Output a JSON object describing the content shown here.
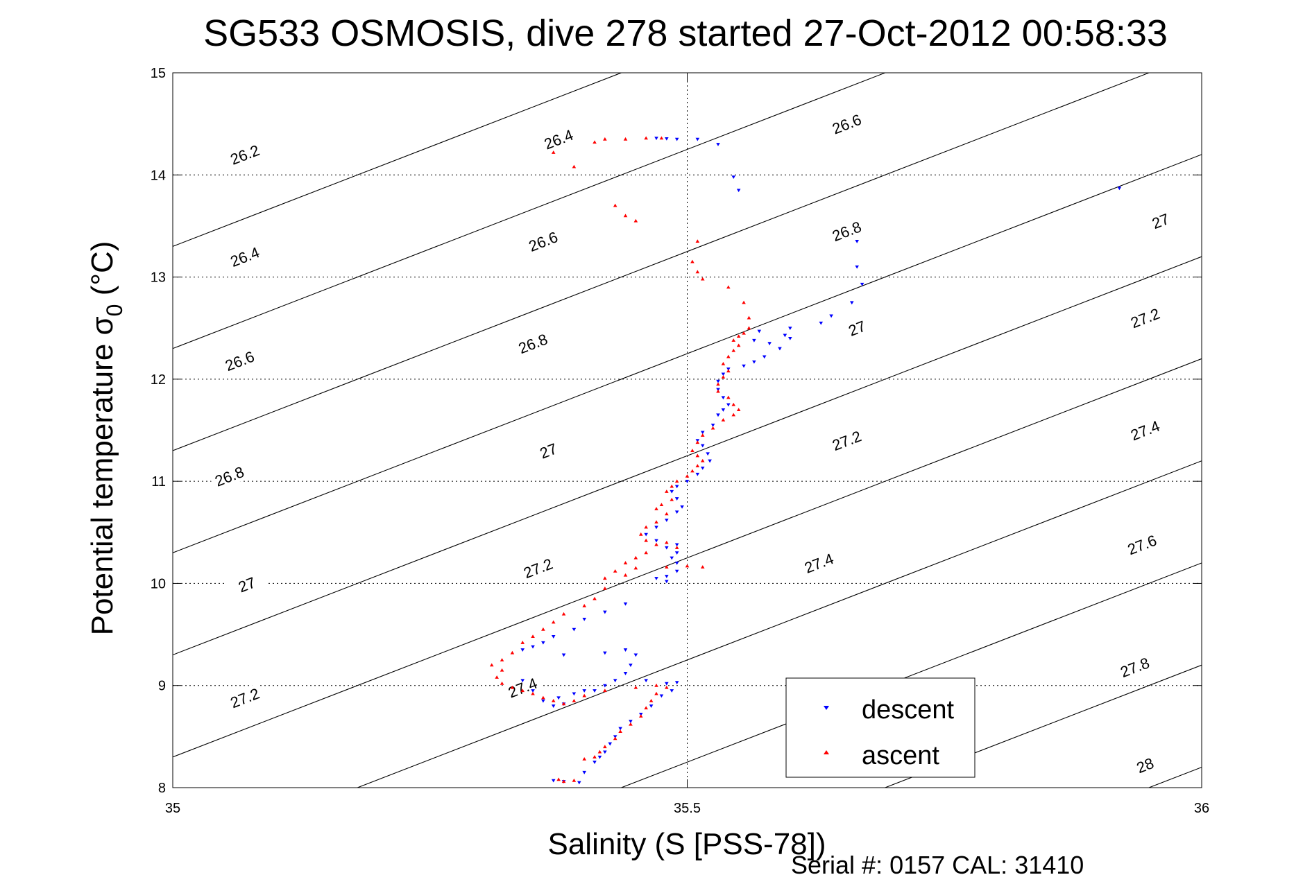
{
  "chart_data": {
    "type": "scatter",
    "title": "SG533 OSMOSIS, dive 278 started 27-Oct-2012 00:58:33",
    "xlabel": "Salinity (S [PSS-78])",
    "ylabel": "Potential temperature σ",
    "ylabel_sub": "0",
    "ylabel_unit": " (°C)",
    "xlim": [
      35,
      36
    ],
    "ylim": [
      8,
      15
    ],
    "xticks": [
      35,
      35.5,
      36
    ],
    "xtick_labels": [
      "35",
      "35.5",
      "36"
    ],
    "yticks": [
      8,
      9,
      10,
      11,
      12,
      13,
      14,
      15
    ],
    "ytick_labels": [
      "8",
      "9",
      "10",
      "11",
      "12",
      "13",
      "14",
      "15"
    ],
    "grid": true,
    "legend_position": "bottom-right",
    "contours": {
      "levels": [
        26.2,
        26.4,
        26.6,
        26.8,
        27,
        27.2,
        27.4,
        27.6,
        27.8,
        28
      ],
      "labels": [
        {
          "text": "26.2",
          "s": 35.07,
          "t": 14.2
        },
        {
          "text": "26.4",
          "s": 35.375,
          "t": 14.35
        },
        {
          "text": "26.4",
          "s": 35.07,
          "t": 13.2
        },
        {
          "text": "26.6",
          "s": 35.36,
          "t": 13.35
        },
        {
          "text": "26.6",
          "s": 35.655,
          "t": 14.5
        },
        {
          "text": "26.6",
          "s": 35.065,
          "t": 12.18
        },
        {
          "text": "26.8",
          "s": 35.35,
          "t": 12.35
        },
        {
          "text": "26.8",
          "s": 35.655,
          "t": 13.45
        },
        {
          "text": "27",
          "s": 35.96,
          "t": 13.55
        },
        {
          "text": "26.8",
          "s": 35.055,
          "t": 11.05
        },
        {
          "text": "27",
          "s": 35.365,
          "t": 11.3
        },
        {
          "text": "27",
          "s": 35.665,
          "t": 12.5
        },
        {
          "text": "27.2",
          "s": 35.945,
          "t": 12.6
        },
        {
          "text": "27",
          "s": 35.072,
          "t": 9.99
        },
        {
          "text": "27.2",
          "s": 35.355,
          "t": 10.15
        },
        {
          "text": "27.2",
          "s": 35.655,
          "t": 11.4
        },
        {
          "text": "27.4",
          "s": 35.945,
          "t": 11.5
        },
        {
          "text": "27.2",
          "s": 35.07,
          "t": 8.88
        },
        {
          "text": "27.4",
          "s": 35.34,
          "t": 8.98
        },
        {
          "text": "27.4",
          "s": 35.628,
          "t": 10.2
        },
        {
          "text": "27.6",
          "s": 35.942,
          "t": 10.38
        },
        {
          "text": "27.8",
          "s": 35.935,
          "t": 9.18
        },
        {
          "text": "28",
          "s": 35.945,
          "t": 8.22
        }
      ]
    },
    "series": [
      {
        "name": "descent",
        "color": "#0000ff",
        "marker": "triangle-down",
        "points": [
          [
            35.47,
            14.36
          ],
          [
            35.48,
            14.355
          ],
          [
            35.49,
            14.35
          ],
          [
            35.51,
            14.35
          ],
          [
            35.53,
            14.3
          ],
          [
            35.545,
            13.98
          ],
          [
            35.55,
            13.85
          ],
          [
            35.92,
            13.87
          ],
          [
            35.665,
            13.35
          ],
          [
            35.665,
            13.1
          ],
          [
            35.67,
            12.93
          ],
          [
            35.66,
            12.75
          ],
          [
            35.64,
            12.62
          ],
          [
            35.63,
            12.55
          ],
          [
            35.6,
            12.5
          ],
          [
            35.57,
            12.47
          ],
          [
            35.595,
            12.43
          ],
          [
            35.6,
            12.4
          ],
          [
            35.58,
            12.35
          ],
          [
            35.565,
            12.38
          ],
          [
            35.59,
            12.3
          ],
          [
            35.575,
            12.22
          ],
          [
            35.565,
            12.17
          ],
          [
            35.555,
            12.13
          ],
          [
            35.54,
            12.1
          ],
          [
            35.535,
            12.05
          ],
          [
            35.53,
            11.98
          ],
          [
            35.53,
            11.9
          ],
          [
            35.535,
            11.82
          ],
          [
            35.54,
            11.75
          ],
          [
            35.535,
            11.7
          ],
          [
            35.53,
            11.65
          ],
          [
            35.525,
            11.55
          ],
          [
            35.515,
            11.48
          ],
          [
            35.51,
            11.4
          ],
          [
            35.515,
            11.35
          ],
          [
            35.52,
            11.27
          ],
          [
            35.522,
            11.2
          ],
          [
            35.515,
            11.13
          ],
          [
            35.51,
            11.07
          ],
          [
            35.5,
            11.0
          ],
          [
            35.49,
            10.95
          ],
          [
            35.485,
            10.9
          ],
          [
            35.49,
            10.83
          ],
          [
            35.495,
            10.75
          ],
          [
            35.49,
            10.7
          ],
          [
            35.48,
            10.62
          ],
          [
            35.47,
            10.55
          ],
          [
            35.46,
            10.48
          ],
          [
            35.47,
            10.42
          ],
          [
            35.48,
            10.35
          ],
          [
            35.49,
            10.38
          ],
          [
            35.49,
            10.3
          ],
          [
            35.485,
            10.25
          ],
          [
            35.49,
            10.2
          ],
          [
            35.49,
            10.12
          ],
          [
            35.48,
            10.07
          ],
          [
            35.48,
            10.02
          ],
          [
            35.47,
            10.05
          ],
          [
            35.44,
            9.8
          ],
          [
            35.42,
            9.72
          ],
          [
            35.4,
            9.65
          ],
          [
            35.39,
            9.55
          ],
          [
            35.37,
            9.48
          ],
          [
            35.36,
            9.42
          ],
          [
            35.35,
            9.38
          ],
          [
            35.34,
            9.35
          ],
          [
            35.38,
            9.3
          ],
          [
            35.42,
            9.32
          ],
          [
            35.44,
            9.35
          ],
          [
            35.45,
            9.3
          ],
          [
            35.445,
            9.2
          ],
          [
            35.44,
            9.12
          ],
          [
            35.43,
            9.05
          ],
          [
            35.46,
            9.05
          ],
          [
            35.48,
            9.02
          ],
          [
            35.49,
            9.03
          ],
          [
            35.485,
            8.95
          ],
          [
            35.475,
            8.9
          ],
          [
            35.465,
            8.8
          ],
          [
            35.455,
            8.72
          ],
          [
            35.445,
            8.65
          ],
          [
            35.435,
            8.58
          ],
          [
            35.43,
            8.5
          ],
          [
            35.425,
            8.43
          ],
          [
            35.42,
            8.35
          ],
          [
            35.415,
            8.3
          ],
          [
            35.41,
            8.25
          ],
          [
            35.4,
            8.15
          ],
          [
            35.395,
            8.05
          ],
          [
            35.38,
            8.06
          ],
          [
            35.37,
            8.07
          ],
          [
            35.42,
            9.0
          ],
          [
            35.41,
            8.95
          ],
          [
            35.4,
            8.95
          ],
          [
            35.39,
            8.92
          ],
          [
            35.375,
            8.88
          ],
          [
            35.37,
            8.8
          ],
          [
            35.38,
            8.82
          ],
          [
            35.36,
            8.85
          ],
          [
            35.35,
            8.95
          ],
          [
            35.34,
            9.05
          ]
        ]
      },
      {
        "name": "ascent",
        "color": "#ff0000",
        "marker": "triangle-up",
        "points": [
          [
            35.37,
            14.22
          ],
          [
            35.39,
            14.08
          ],
          [
            35.41,
            14.32
          ],
          [
            35.42,
            14.35
          ],
          [
            35.44,
            14.35
          ],
          [
            35.46,
            14.36
          ],
          [
            35.475,
            14.36
          ],
          [
            35.43,
            13.7
          ],
          [
            35.44,
            13.6
          ],
          [
            35.45,
            13.55
          ],
          [
            35.51,
            13.35
          ],
          [
            35.505,
            13.15
          ],
          [
            35.51,
            13.05
          ],
          [
            35.515,
            12.98
          ],
          [
            35.54,
            12.9
          ],
          [
            35.555,
            12.75
          ],
          [
            35.56,
            12.6
          ],
          [
            35.56,
            12.5
          ],
          [
            35.555,
            12.45
          ],
          [
            35.55,
            12.42
          ],
          [
            35.545,
            12.38
          ],
          [
            35.55,
            12.33
          ],
          [
            35.545,
            12.28
          ],
          [
            35.54,
            12.22
          ],
          [
            35.535,
            12.15
          ],
          [
            35.54,
            12.08
          ],
          [
            35.535,
            12.02
          ],
          [
            35.53,
            11.95
          ],
          [
            35.53,
            11.88
          ],
          [
            35.54,
            11.82
          ],
          [
            35.545,
            11.75
          ],
          [
            35.55,
            11.7
          ],
          [
            35.545,
            11.65
          ],
          [
            35.535,
            11.6
          ],
          [
            35.525,
            11.52
          ],
          [
            35.515,
            11.45
          ],
          [
            35.51,
            11.38
          ],
          [
            35.505,
            11.3
          ],
          [
            35.51,
            11.25
          ],
          [
            35.515,
            11.2
          ],
          [
            35.51,
            11.15
          ],
          [
            35.505,
            11.1
          ],
          [
            35.5,
            11.05
          ],
          [
            35.49,
            11.0
          ],
          [
            35.485,
            10.95
          ],
          [
            35.48,
            10.9
          ],
          [
            35.485,
            10.82
          ],
          [
            35.475,
            10.77
          ],
          [
            35.47,
            10.73
          ],
          [
            35.48,
            10.68
          ],
          [
            35.47,
            10.6
          ],
          [
            35.46,
            10.55
          ],
          [
            35.455,
            10.48
          ],
          [
            35.46,
            10.42
          ],
          [
            35.47,
            10.38
          ],
          [
            35.48,
            10.4
          ],
          [
            35.49,
            10.35
          ],
          [
            35.46,
            10.3
          ],
          [
            35.45,
            10.25
          ],
          [
            35.44,
            10.2
          ],
          [
            35.43,
            10.12
          ],
          [
            35.44,
            10.08
          ],
          [
            35.45,
            10.15
          ],
          [
            35.48,
            10.16
          ],
          [
            35.5,
            10.17
          ],
          [
            35.515,
            10.16
          ],
          [
            35.42,
            10.05
          ],
          [
            35.42,
            9.95
          ],
          [
            35.41,
            9.85
          ],
          [
            35.4,
            9.78
          ],
          [
            35.38,
            9.7
          ],
          [
            35.37,
            9.62
          ],
          [
            35.36,
            9.55
          ],
          [
            35.35,
            9.48
          ],
          [
            35.34,
            9.42
          ],
          [
            35.33,
            9.32
          ],
          [
            35.32,
            9.25
          ],
          [
            35.31,
            9.2
          ],
          [
            35.32,
            9.15
          ],
          [
            35.315,
            9.08
          ],
          [
            35.32,
            9.02
          ],
          [
            35.33,
            8.98
          ],
          [
            35.34,
            8.95
          ],
          [
            35.35,
            8.92
          ],
          [
            35.36,
            8.88
          ],
          [
            35.37,
            8.85
          ],
          [
            35.38,
            8.82
          ],
          [
            35.39,
            8.85
          ],
          [
            35.4,
            8.9
          ],
          [
            35.42,
            8.95
          ],
          [
            35.45,
            8.98
          ],
          [
            35.47,
            9.0
          ],
          [
            35.48,
            8.98
          ],
          [
            35.47,
            8.92
          ],
          [
            35.465,
            8.85
          ],
          [
            35.46,
            8.78
          ],
          [
            35.455,
            8.7
          ],
          [
            35.445,
            8.62
          ],
          [
            35.435,
            8.55
          ],
          [
            35.43,
            8.48
          ],
          [
            35.42,
            8.4
          ],
          [
            35.415,
            8.35
          ],
          [
            35.41,
            8.3
          ],
          [
            35.4,
            8.28
          ],
          [
            35.375,
            8.08
          ],
          [
            35.38,
            8.06
          ],
          [
            35.39,
            8.07
          ]
        ]
      }
    ]
  },
  "legend": {
    "descent_label": "descent",
    "ascent_label": "ascent"
  },
  "footer": {
    "serial": "Serial #: 0157  CAL: 31410"
  },
  "colors": {
    "descent": "#0000ff",
    "ascent": "#ff0000",
    "axis": "#000000",
    "background": "#ffffff"
  }
}
